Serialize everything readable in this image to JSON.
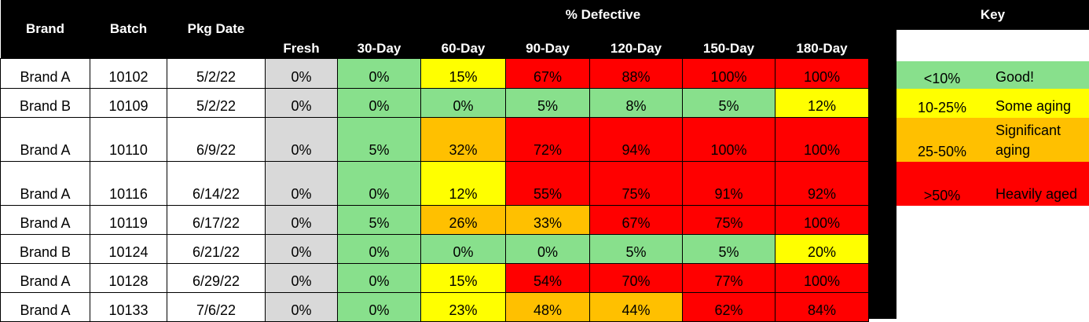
{
  "header": {
    "brand": "Brand",
    "batch": "Batch",
    "pkg_date": "Pkg Date",
    "pct_defective": "% Defective",
    "columns": [
      "Fresh",
      "30-Day",
      "60-Day",
      "90-Day",
      "120-Day",
      "150-Day",
      "180-Day"
    ]
  },
  "colors": {
    "green": "#88e08c",
    "yellow": "#ffff00",
    "orange": "#ffc000",
    "red": "#ff0000",
    "gray": "#d9d9d9",
    "header_bg": "#000000"
  },
  "rows": [
    {
      "brand": "Brand A",
      "batch": "10102",
      "date": "5/2/22",
      "values": [
        "0%",
        "0%",
        "15%",
        "67%",
        "88%",
        "100%",
        "100%"
      ],
      "levels": [
        "gray",
        "green",
        "yellow",
        "red",
        "red",
        "red",
        "red"
      ]
    },
    {
      "brand": "Brand B",
      "batch": "10109",
      "date": "5/2/22",
      "values": [
        "0%",
        "0%",
        "0%",
        "5%",
        "8%",
        "5%",
        "12%"
      ],
      "levels": [
        "gray",
        "green",
        "green",
        "green",
        "green",
        "green",
        "yellow"
      ]
    },
    {
      "brand": "Brand A",
      "batch": "10110",
      "date": "6/9/22",
      "values": [
        "0%",
        "5%",
        "32%",
        "72%",
        "94%",
        "100%",
        "100%"
      ],
      "levels": [
        "gray",
        "green",
        "orange",
        "red",
        "red",
        "red",
        "red"
      ]
    },
    {
      "brand": "Brand A",
      "batch": "10116",
      "date": "6/14/22",
      "values": [
        "0%",
        "0%",
        "12%",
        "55%",
        "75%",
        "91%",
        "92%"
      ],
      "levels": [
        "gray",
        "green",
        "yellow",
        "red",
        "red",
        "red",
        "red"
      ]
    },
    {
      "brand": "Brand A",
      "batch": "10119",
      "date": "6/17/22",
      "values": [
        "0%",
        "5%",
        "26%",
        "33%",
        "67%",
        "75%",
        "100%"
      ],
      "levels": [
        "gray",
        "green",
        "orange",
        "orange",
        "red",
        "red",
        "red"
      ]
    },
    {
      "brand": "Brand B",
      "batch": "10124",
      "date": "6/21/22",
      "values": [
        "0%",
        "0%",
        "0%",
        "0%",
        "5%",
        "5%",
        "20%"
      ],
      "levels": [
        "gray",
        "green",
        "green",
        "green",
        "green",
        "green",
        "yellow"
      ]
    },
    {
      "brand": "Brand A",
      "batch": "10128",
      "date": "6/29/22",
      "values": [
        "0%",
        "0%",
        "15%",
        "54%",
        "70%",
        "77%",
        "100%"
      ],
      "levels": [
        "gray",
        "green",
        "yellow",
        "red",
        "red",
        "red",
        "red"
      ]
    },
    {
      "brand": "Brand A",
      "batch": "10133",
      "date": "7/6/22",
      "values": [
        "0%",
        "0%",
        "23%",
        "48%",
        "44%",
        "62%",
        "84%"
      ],
      "levels": [
        "gray",
        "green",
        "yellow",
        "orange",
        "orange",
        "red",
        "red"
      ]
    }
  ],
  "key": {
    "title": "Key",
    "items": [
      {
        "range": "<10%",
        "label": "Good!",
        "color": "green"
      },
      {
        "range": "10-25%",
        "label": "Some aging",
        "color": "yellow"
      },
      {
        "range": "25-50%",
        "label": "Significant aging",
        "color": "orange"
      },
      {
        "range": ">50%",
        "label": "Heavily aged",
        "color": "red"
      }
    ]
  }
}
